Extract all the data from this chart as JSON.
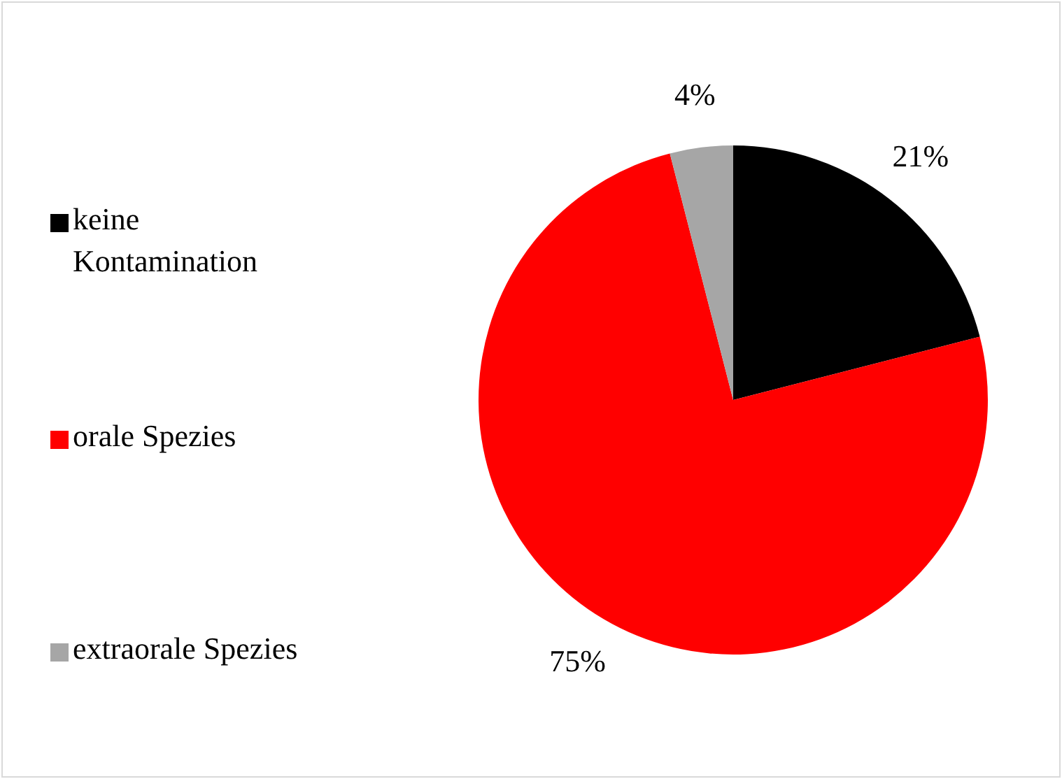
{
  "chart_data": {
    "type": "pie",
    "categories": [
      "keine Kontamination",
      "orale Spezies",
      "extraorale Spezies"
    ],
    "values": [
      21,
      75,
      4
    ],
    "colors": [
      "#000000",
      "#ff0000",
      "#a6a6a6"
    ],
    "value_labels": [
      "21%",
      "75%",
      "4%"
    ],
    "legend": "left"
  }
}
